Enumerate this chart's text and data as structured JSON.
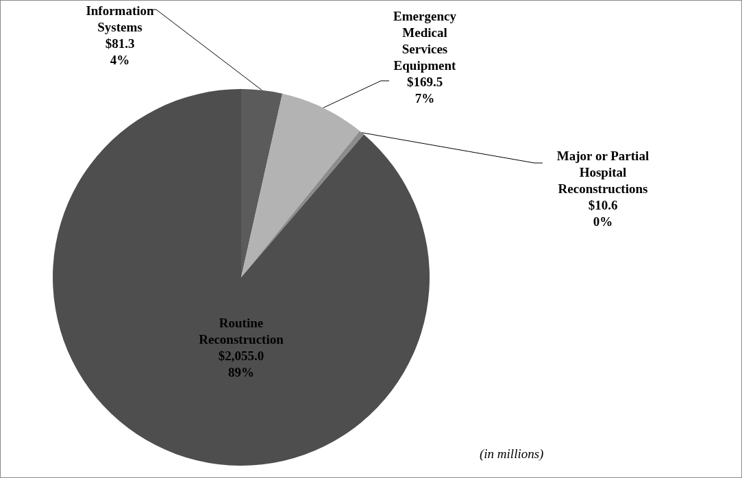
{
  "chart_data": {
    "type": "pie",
    "categories": [
      "Information\nSystems",
      "Emergency\nMedical\nServices\nEquipment",
      "Major or Partial\nHospital\nReconstructions",
      "Routine\nReconstruction"
    ],
    "values": [
      81.3,
      169.5,
      10.6,
      2055.0
    ],
    "value_labels": [
      "$81.3\n4%",
      "$169.5\n7%",
      "$10.6\n0%",
      "$2,055.0\n89%"
    ],
    "colors": [
      "#5b5b5b",
      "#b3b3b3",
      "#8c8c8c",
      "#4e4e4e"
    ],
    "annotations": [
      "(in millions)"
    ]
  }
}
